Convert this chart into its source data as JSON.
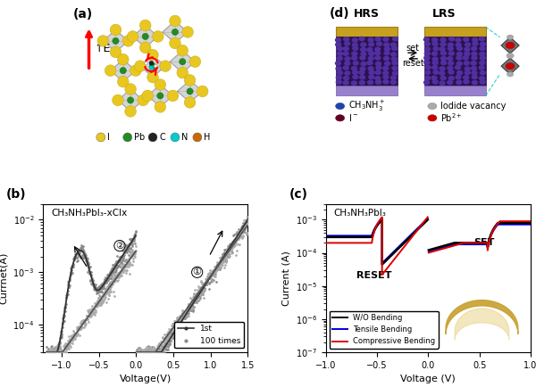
{
  "fig_width": 6.0,
  "fig_height": 4.34,
  "dpi": 100,
  "panel_labels": [
    "(a)",
    "(b)",
    "(c)",
    "(d)"
  ],
  "panel_b": {
    "title": "CH₃NH₃PbI₃-xClx",
    "xlabel": "Voltage(V)",
    "ylabel": "Currnet(A)",
    "xlim": [
      -1.25,
      1.5
    ],
    "ylim": [
      3e-05,
      0.02
    ],
    "xticks": [
      -1.0,
      -0.5,
      0.0,
      0.5,
      1.0,
      1.5
    ],
    "legend_entries": [
      "1st",
      "100 times"
    ]
  },
  "panel_c": {
    "title": "CH₃NH₃PbI₃",
    "xlabel": "Voltage (V)",
    "ylabel": "Current (A)",
    "xlim": [
      -1.0,
      1.0
    ],
    "ylim": [
      1e-07,
      0.003
    ],
    "xticks": [
      -1.0,
      -0.5,
      0.0,
      0.5,
      1.0
    ],
    "legend_entries": [
      "W/O Bending",
      "Tensile Bending",
      "Compressive Bending"
    ],
    "legend_colors": [
      "#000000",
      "#0000dd",
      "#dd0000"
    ],
    "annotation_reset": "RESET",
    "annotation_set": "SET"
  }
}
